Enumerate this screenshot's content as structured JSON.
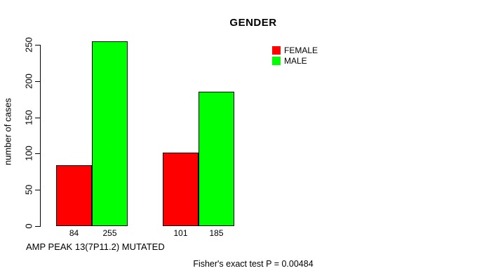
{
  "chart_data": {
    "type": "bar",
    "title": "GENDER",
    "ylabel": "number of cases",
    "xlabel": "AMP PEAK 13(7P11.2) MUTATED",
    "annotation": "Fisher's exact test P = 0.00484",
    "series": [
      {
        "name": "FEMALE",
        "color": "#ff0000",
        "values": [
          84,
          101
        ]
      },
      {
        "name": "MALE",
        "color": "#00ff00",
        "values": [
          255,
          185
        ]
      }
    ],
    "value_labels": [
      "84",
      "255",
      "101",
      "185"
    ],
    "yticks": [
      0,
      50,
      100,
      150,
      200,
      250
    ],
    "ylim": [
      0,
      250
    ],
    "grid": false,
    "legend_position": "top-right"
  },
  "colors": {
    "background": "#ffffff",
    "bar_border": "#000000",
    "text": "#000000",
    "female": "#ff0000",
    "male": "#00ff00"
  }
}
